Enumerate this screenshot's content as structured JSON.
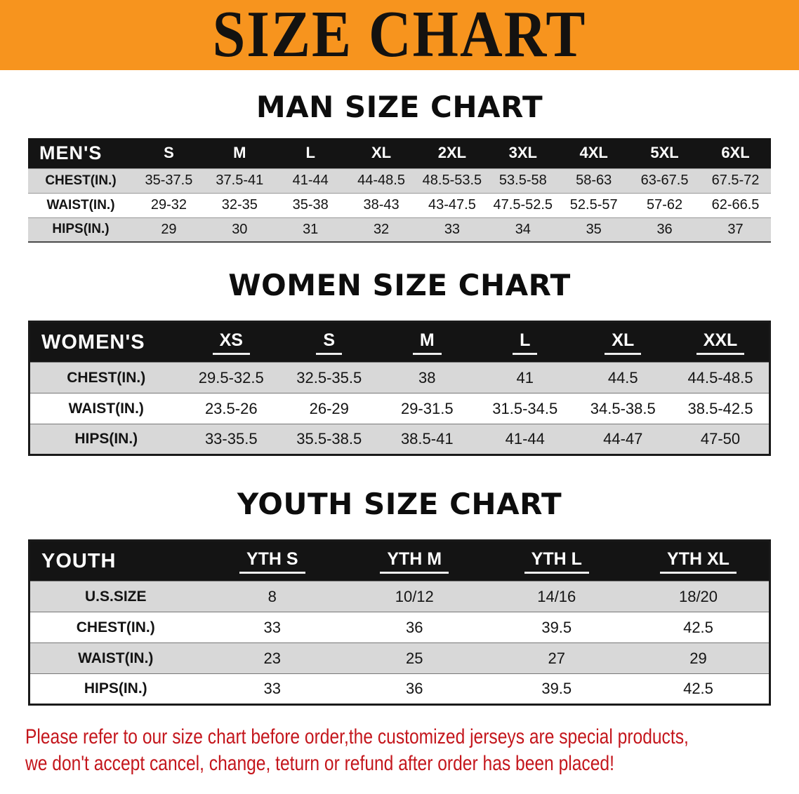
{
  "banner": {
    "title": "SIZE CHART"
  },
  "men": {
    "heading": "MAN SIZE CHART",
    "table": {
      "corner_label": "MEN'S",
      "columns": [
        "S",
        "M",
        "L",
        "XL",
        "2XL",
        "3XL",
        "4XL",
        "5XL",
        "6XL"
      ],
      "rows": [
        {
          "label": "CHEST(IN.)",
          "values": [
            "35-37.5",
            "37.5-41",
            "41-44",
            "44-48.5",
            "48.5-53.5",
            "53.5-58",
            "58-63",
            "63-67.5",
            "67.5-72"
          ]
        },
        {
          "label": "WAIST(IN.)",
          "values": [
            "29-32",
            "32-35",
            "35-38",
            "38-43",
            "43-47.5",
            "47.5-52.5",
            "52.5-57",
            "57-62",
            "62-66.5"
          ]
        },
        {
          "label": "HIPS(IN.)",
          "values": [
            "29",
            "30",
            "31",
            "32",
            "33",
            "34",
            "35",
            "36",
            "37"
          ]
        }
      ]
    }
  },
  "women": {
    "heading": "WOMEN SIZE CHART",
    "table": {
      "corner_label": "WOMEN'S",
      "columns": [
        "XS",
        "S",
        "M",
        "L",
        "XL",
        "XXL"
      ],
      "rows": [
        {
          "label": "CHEST(IN.)",
          "values": [
            "29.5-32.5",
            "32.5-35.5",
            "38",
            "41",
            "44.5",
            "44.5-48.5"
          ]
        },
        {
          "label": "WAIST(IN.)",
          "values": [
            "23.5-26",
            "26-29",
            "29-31.5",
            "31.5-34.5",
            "34.5-38.5",
            "38.5-42.5"
          ]
        },
        {
          "label": "HIPS(IN.)",
          "values": [
            "33-35.5",
            "35.5-38.5",
            "38.5-41",
            "41-44",
            "44-47",
            "47-50"
          ]
        }
      ]
    }
  },
  "youth": {
    "heading": "YOUTH SIZE CHART",
    "table": {
      "corner_label": "YOUTH",
      "columns": [
        "YTH S",
        "YTH M",
        "YTH L",
        "YTH XL"
      ],
      "rows": [
        {
          "label": "U.S.SIZE",
          "values": [
            "8",
            "10/12",
            "14/16",
            "18/20"
          ]
        },
        {
          "label": "CHEST(IN.)",
          "values": [
            "33",
            "36",
            "39.5",
            "42.5"
          ]
        },
        {
          "label": "WAIST(IN.)",
          "values": [
            "23",
            "25",
            "27",
            "29"
          ]
        },
        {
          "label": "HIPS(IN.)",
          "values": [
            "33",
            "36",
            "39.5",
            "42.5"
          ]
        }
      ]
    }
  },
  "disclaimer": {
    "line1": "Please refer to our size chart before order,the customized jerseys are special products,",
    "line2": "we don't accept cancel, change, teturn or refund after order has been placed!"
  },
  "colors": {
    "banner_orange": "#F7941E",
    "header_black": "#141414",
    "row_shaded": "#D8D8D8",
    "disclaimer_red": "#C4161C"
  }
}
